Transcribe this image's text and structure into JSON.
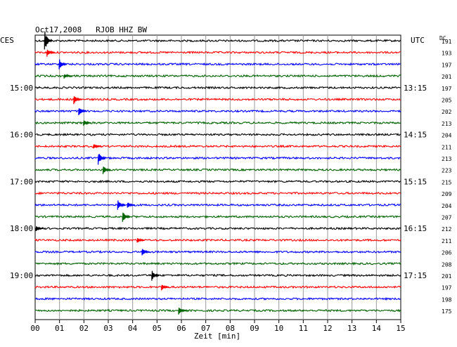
{
  "chart_data": {
    "type": "helicorder",
    "title": "Oct17,2008   RJOB HHZ BW",
    "left_timezone": "CES",
    "right_timezone": "UTC",
    "dc_header": "DC",
    "xlabel": "Zeit [min]",
    "x_ticks": [
      "00",
      "01",
      "02",
      "03",
      "04",
      "05",
      "06",
      "07",
      "08",
      "09",
      "10",
      "11",
      "12",
      "13",
      "14",
      "15"
    ],
    "xlim": [
      0,
      15
    ],
    "left_hour_labels": [
      {
        "row": 4,
        "label": "15:00"
      },
      {
        "row": 8,
        "label": "16:00"
      },
      {
        "row": 12,
        "label": "17:00"
      },
      {
        "row": 16,
        "label": "18:00"
      },
      {
        "row": 20,
        "label": "19:00"
      }
    ],
    "right_hour_labels": [
      {
        "row": 4,
        "label": "13:15"
      },
      {
        "row": 8,
        "label": "14:15"
      },
      {
        "row": 12,
        "label": "15:15"
      },
      {
        "row": 16,
        "label": "16:15"
      },
      {
        "row": 20,
        "label": "17:15"
      }
    ],
    "dc_offsets": [
      191,
      193,
      197,
      201,
      197,
      205,
      202,
      213,
      204,
      211,
      213,
      223,
      215,
      209,
      204,
      207,
      212,
      211,
      206,
      208,
      201,
      197,
      198,
      175
    ],
    "trace_colors": [
      "#000000",
      "#ff0000",
      "#0000ff",
      "#006400"
    ],
    "events": [
      {
        "row": 0,
        "min": 0.5,
        "amp": 16
      },
      {
        "row": 1,
        "min": 0.6,
        "amp": 6
      },
      {
        "row": 2,
        "min": 1.1,
        "amp": 8
      },
      {
        "row": 3,
        "min": 1.3,
        "amp": 4
      },
      {
        "row": 5,
        "min": 1.7,
        "amp": 7
      },
      {
        "row": 6,
        "min": 1.9,
        "amp": 8
      },
      {
        "row": 7,
        "min": 2.1,
        "amp": 5
      },
      {
        "row": 9,
        "min": 2.5,
        "amp": 5
      },
      {
        "row": 10,
        "min": 2.7,
        "amp": 10
      },
      {
        "row": 11,
        "min": 2.9,
        "amp": 7
      },
      {
        "row": 14,
        "min": 3.5,
        "amp": 8
      },
      {
        "row": 15,
        "min": 3.7,
        "amp": 8
      },
      {
        "row": 14,
        "min": 3.9,
        "amp": 5
      },
      {
        "row": 16,
        "min": 0.15,
        "amp": 4
      },
      {
        "row": 17,
        "min": 4.3,
        "amp": 4
      },
      {
        "row": 18,
        "min": 4.5,
        "amp": 6
      },
      {
        "row": 20,
        "min": 4.9,
        "amp": 8
      },
      {
        "row": 21,
        "min": 5.3,
        "amp": 5
      },
      {
        "row": 23,
        "min": 6.0,
        "amp": 6
      }
    ],
    "grid": true
  }
}
